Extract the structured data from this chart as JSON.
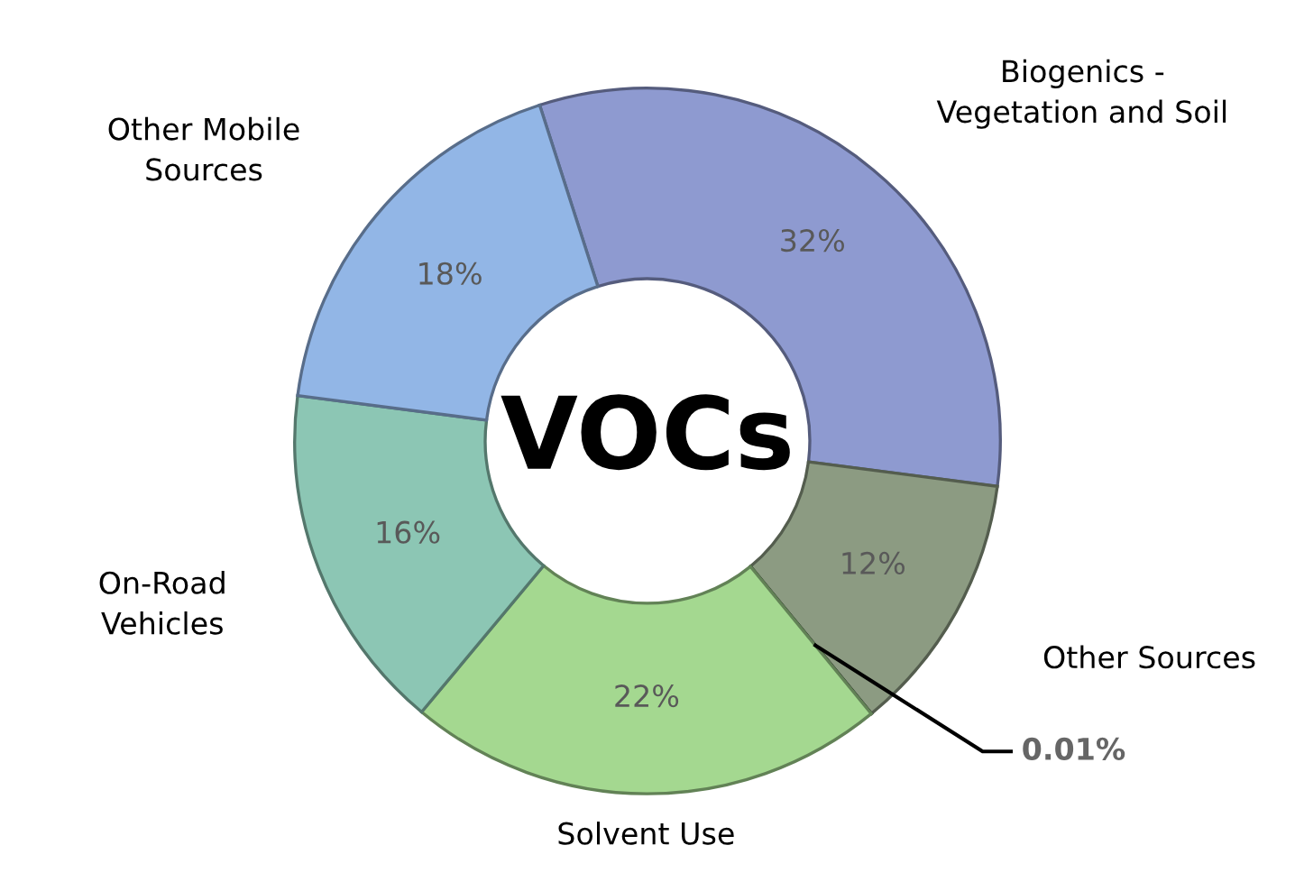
{
  "chart_data": {
    "type": "donut",
    "title": "VOCs",
    "categories": [
      "Biogenics -\nVegetation and Soil",
      "Other Sources",
      null,
      "Solvent Use",
      "On-Road\nVehicles",
      "Other Mobile\nSources"
    ],
    "values": [
      32,
      12,
      0.01,
      22,
      16,
      18
    ],
    "colors": [
      "#8e9ad0",
      "#8c9b82",
      "#3a3a3a",
      "#a4d890",
      "#8cc6b4",
      "#92b6e6"
    ],
    "value_labels": [
      "32%",
      "12%",
      "0.01%",
      "22%",
      "16%",
      "18%"
    ]
  }
}
